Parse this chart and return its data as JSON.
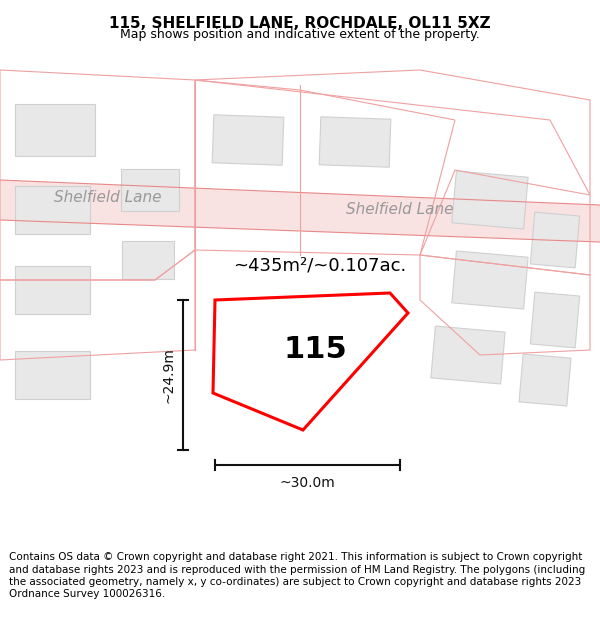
{
  "title": "115, SHELFIELD LANE, ROCHDALE, OL11 5XZ",
  "subtitle": "Map shows position and indicative extent of the property.",
  "footer": "Contains OS data © Crown copyright and database right 2021. This information is subject to Crown copyright and database rights 2023 and is reproduced with the permission of HM Land Registry. The polygons (including the associated geometry, namely x, y co-ordinates) are subject to Crown copyright and database rights 2023 Ordnance Survey 100026316.",
  "road_label_left": "Shelfield Lane",
  "road_label_right": "Shelfield Lane",
  "house_number": "115",
  "area_label": "~435m²/~0.107ac.",
  "dim_vertical": "~24.9m",
  "dim_horizontal": "~30.0m",
  "title_fontsize": 11,
  "subtitle_fontsize": 9,
  "footer_fontsize": 7.5,
  "map_bg": "#ffffff",
  "title_bg": "#ffffff",
  "footer_bg": "#ffffff",
  "road_color": "#f5d0d0",
  "road_line_color": "#e88888",
  "building_fill": "#e8e8e8",
  "building_edge": "#d0d0d0",
  "parcel_edge": "#f0a0a0",
  "plot_edge": "#ff0000",
  "plot_fill": "#ffffff",
  "dim_color": "#111111"
}
